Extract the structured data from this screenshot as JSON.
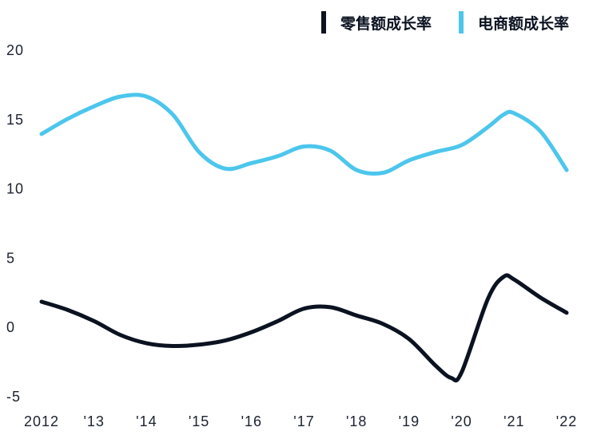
{
  "chart_data": {
    "type": "line",
    "title": "",
    "xlabel": "",
    "ylabel": "",
    "x_tick_labels": [
      "2012",
      "'13",
      "'14",
      "'15",
      "'16",
      "'17",
      "'18",
      "'19",
      "'20",
      "'21",
      "'22"
    ],
    "y_ticks": [
      -5,
      0,
      5,
      10,
      15,
      20
    ],
    "ylim": [
      -5,
      20
    ],
    "grid": false,
    "legend_position": "top-right",
    "series": [
      {
        "name": "零售额成长率",
        "color": "#0b1220",
        "x": [
          2012.0,
          2012.5,
          2013.0,
          2013.5,
          2014.0,
          2014.5,
          2015.0,
          2015.5,
          2016.0,
          2016.5,
          2017.0,
          2017.5,
          2018.0,
          2018.5,
          2019.0,
          2019.5,
          2019.8,
          2020.0,
          2020.5,
          2020.8,
          2021.0,
          2021.5,
          2022.0
        ],
        "values": [
          1.8,
          1.2,
          0.4,
          -0.6,
          -1.2,
          -1.4,
          -1.3,
          -1.0,
          -0.4,
          0.4,
          1.3,
          1.4,
          0.8,
          0.2,
          -0.9,
          -2.8,
          -3.7,
          -3.3,
          2.0,
          3.6,
          3.4,
          2.1,
          1.0
        ]
      },
      {
        "name": "电商额成长率",
        "color": "#4cc6ec",
        "x": [
          2012.0,
          2012.5,
          2013.0,
          2013.5,
          2014.0,
          2014.5,
          2015.0,
          2015.5,
          2016.0,
          2016.5,
          2017.0,
          2017.5,
          2018.0,
          2018.5,
          2019.0,
          2019.5,
          2020.0,
          2020.5,
          2020.8,
          2021.0,
          2021.5,
          2022.0
        ],
        "values": [
          13.9,
          15.0,
          15.9,
          16.6,
          16.6,
          15.3,
          12.6,
          11.4,
          11.8,
          12.3,
          13.0,
          12.7,
          11.3,
          11.1,
          12.0,
          12.6,
          13.1,
          14.4,
          15.3,
          15.4,
          14.1,
          11.3
        ]
      }
    ]
  }
}
